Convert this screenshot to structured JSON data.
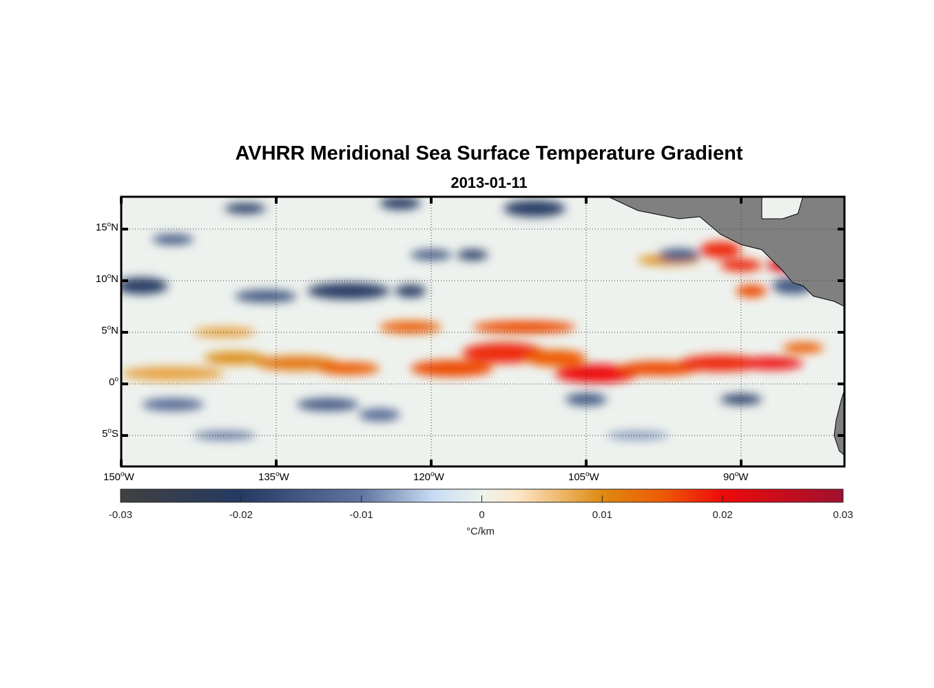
{
  "title": "AVHRR Meridional Sea Surface Temperature Gradient",
  "subtitle": "2013-01-11",
  "chart_data": {
    "type": "heatmap",
    "title": "AVHRR Meridional Sea Surface Temperature Gradient",
    "subtitle": "2013-01-11",
    "lon_range": [
      -150,
      -80
    ],
    "lat_range": [
      -8,
      18
    ],
    "grid": true,
    "x_ticks": [
      {
        "value": -150,
        "label": "150",
        "suffix": "W"
      },
      {
        "value": -135,
        "label": "135",
        "suffix": "W"
      },
      {
        "value": -120,
        "label": "120",
        "suffix": "W"
      },
      {
        "value": -105,
        "label": "105",
        "suffix": "W"
      },
      {
        "value": -90,
        "label": "90",
        "suffix": "W"
      }
    ],
    "y_ticks": [
      {
        "value": 15,
        "label": "15",
        "suffix": "N"
      },
      {
        "value": 10,
        "label": "10",
        "suffix": "N"
      },
      {
        "value": 5,
        "label": "5",
        "suffix": "N"
      },
      {
        "value": 0,
        "label": "0",
        "suffix": ""
      },
      {
        "value": -5,
        "label": "5",
        "suffix": "S"
      }
    ],
    "colorbar": {
      "range": [
        -0.03,
        0.03
      ],
      "ticks": [
        "-0.03",
        "-0.02",
        "-0.01",
        "0",
        "0.01",
        "0.02",
        "0.03"
      ],
      "tick_values": [
        -0.03,
        -0.02,
        -0.01,
        0,
        0.01,
        0.02,
        0.03
      ],
      "label": "°C/km",
      "colors": [
        [
          -0.03,
          "#404040"
        ],
        [
          -0.02,
          "#253a63"
        ],
        [
          -0.01,
          "#6075a0"
        ],
        [
          -0.004,
          "#c9dcf5"
        ],
        [
          0,
          "#eef2ee"
        ],
        [
          0.003,
          "#fde6c8"
        ],
        [
          0.01,
          "#de8a10"
        ],
        [
          0.015,
          "#ee5a05"
        ],
        [
          0.02,
          "#ee0a0a"
        ],
        [
          0.03,
          "#a01030"
        ]
      ]
    },
    "features": [
      [
        -145,
        1,
        5,
        0.7,
        0.008
      ],
      [
        -139,
        2.5,
        3,
        0.6,
        0.01
      ],
      [
        -133,
        2,
        4,
        0.7,
        0.012
      ],
      [
        -128,
        1.5,
        3,
        0.6,
        0.015
      ],
      [
        -118,
        1.5,
        4,
        0.8,
        0.016
      ],
      [
        -113,
        3,
        4,
        1,
        0.018
      ],
      [
        -108,
        2.5,
        3,
        0.8,
        0.015
      ],
      [
        -104,
        1,
        4,
        0.9,
        0.02
      ],
      [
        -98,
        1.5,
        4,
        0.7,
        0.016
      ],
      [
        -92,
        2,
        4,
        0.8,
        0.018
      ],
      [
        -87,
        2,
        3,
        0.6,
        0.02
      ],
      [
        -111,
        5.5,
        5,
        0.6,
        0.016
      ],
      [
        -122,
        5.5,
        3,
        0.6,
        0.014
      ],
      [
        -92,
        13,
        2,
        0.8,
        0.018
      ],
      [
        -90,
        11.5,
        2,
        0.6,
        0.018
      ],
      [
        -86,
        11.5,
        1.5,
        0.6,
        0.022
      ],
      [
        -89,
        9,
        1.5,
        0.6,
        0.016
      ],
      [
        -97,
        12,
        3,
        0.5,
        0.01
      ],
      [
        -140,
        5,
        3,
        0.5,
        0.008
      ],
      [
        -84,
        3.5,
        2,
        0.5,
        0.015
      ],
      [
        -148,
        9.5,
        2.5,
        0.8,
        -0.02
      ],
      [
        -136,
        8.5,
        3,
        0.6,
        -0.015
      ],
      [
        -128,
        9,
        4,
        0.8,
        -0.02
      ],
      [
        -122,
        9,
        1.5,
        0.6,
        -0.02
      ],
      [
        -145,
        14,
        2,
        0.5,
        -0.015
      ],
      [
        -138,
        17,
        2,
        0.5,
        -0.02
      ],
      [
        -123,
        17.5,
        2,
        0.6,
        -0.02
      ],
      [
        -110,
        17,
        3,
        0.8,
        -0.02
      ],
      [
        -120,
        12.5,
        2,
        0.5,
        -0.015
      ],
      [
        -116,
        12.5,
        1.5,
        0.5,
        -0.02
      ],
      [
        -130,
        -2,
        3,
        0.6,
        -0.015
      ],
      [
        -145,
        -2,
        3,
        0.6,
        -0.012
      ],
      [
        -105,
        -1.5,
        2,
        0.6,
        -0.015
      ],
      [
        -90,
        -1.5,
        2,
        0.5,
        -0.02
      ],
      [
        -125,
        -3,
        2,
        0.6,
        -0.012
      ],
      [
        -96,
        12.5,
        2,
        0.6,
        -0.015
      ],
      [
        -85,
        9.5,
        2,
        0.8,
        -0.015
      ],
      [
        -140,
        -5,
        3,
        0.4,
        -0.01
      ],
      [
        -100,
        -5,
        3,
        0.4,
        -0.008
      ]
    ],
    "land": [
      [
        [
          -103,
          18.2
        ],
        [
          -100,
          16.8
        ],
        [
          -96,
          16
        ],
        [
          -94,
          16.2
        ],
        [
          -92,
          14.5
        ],
        [
          -90,
          13.5
        ],
        [
          -88,
          13
        ],
        [
          -86,
          11
        ],
        [
          -85,
          9.8
        ],
        [
          -84,
          9.5
        ],
        [
          -83,
          8.5
        ],
        [
          -81,
          8
        ],
        [
          -80,
          7.5
        ],
        [
          -79.9,
          18.2
        ],
        [
          -84,
          18.2
        ],
        [
          -84.5,
          16.5
        ],
        [
          -86,
          16
        ],
        [
          -88,
          16
        ],
        [
          -88,
          18.2
        ]
      ],
      [
        [
          -79.9,
          -0.3
        ],
        [
          -80.3,
          -1.5
        ],
        [
          -80.8,
          -3.5
        ],
        [
          -81,
          -5
        ],
        [
          -80.5,
          -6.5
        ],
        [
          -79.9,
          -7
        ]
      ]
    ],
    "land_color": "#808080"
  }
}
